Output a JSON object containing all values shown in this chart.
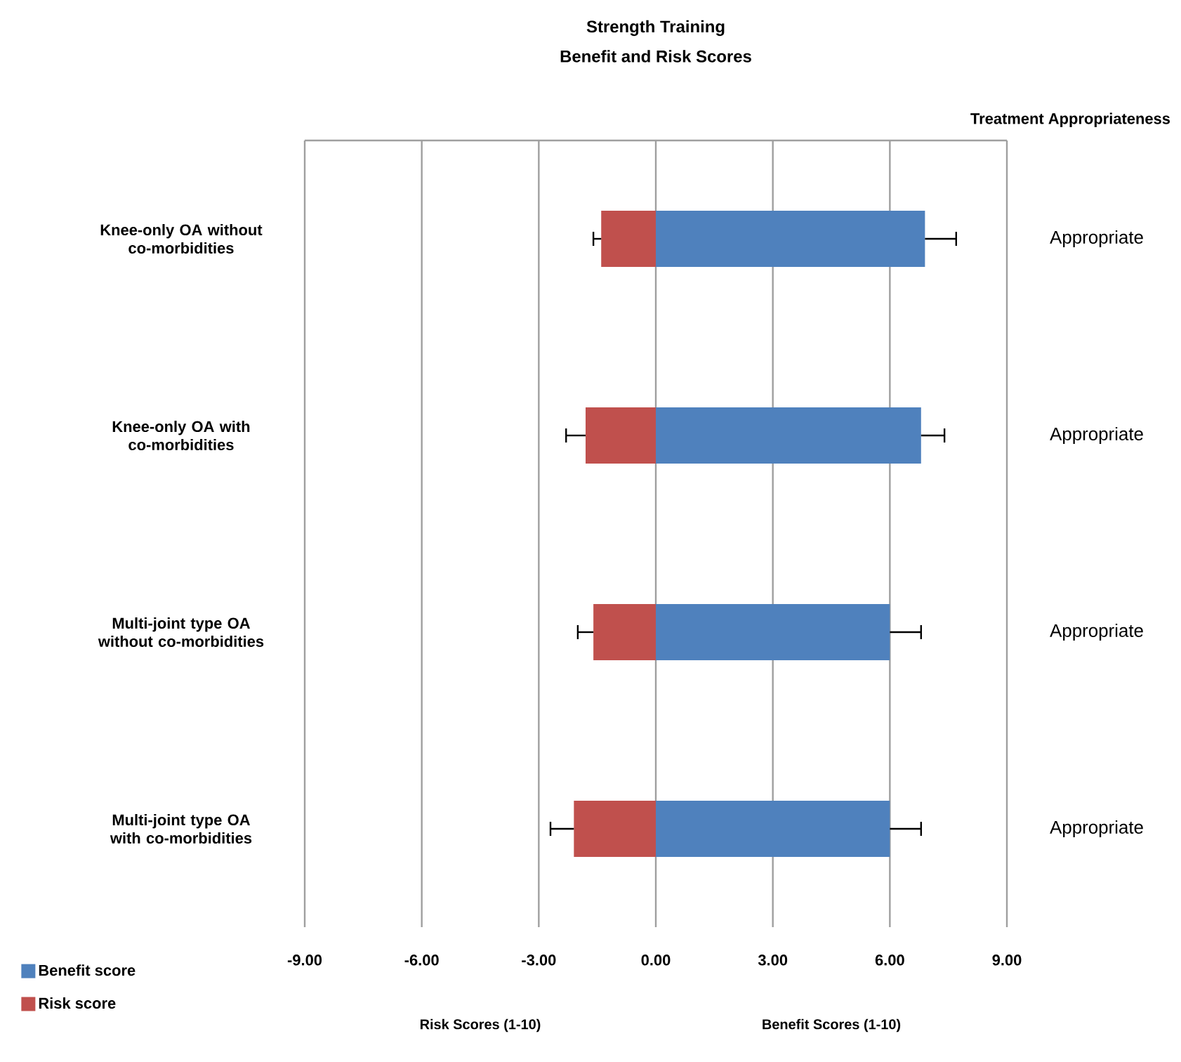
{
  "chart_data": {
    "type": "bar",
    "orientation": "horizontal",
    "stacked": true,
    "title": "Strength Training",
    "subtitle": "Benefit and Risk Scores",
    "categories": [
      "Knee-only OA without co-morbidities",
      "Knee-only OA with co-morbidities",
      "Multi-joint type OA without co-morbidities",
      "Multi-joint type OA with co-morbidities"
    ],
    "series": [
      {
        "name": "Benefit score",
        "color": "#4f81bd",
        "values": [
          6.9,
          6.8,
          6.0,
          6.0
        ],
        "errors": [
          [
            6.9,
            7.7
          ],
          [
            6.8,
            7.4
          ],
          [
            6.0,
            6.8
          ],
          [
            6.0,
            6.8
          ]
        ]
      },
      {
        "name": "Risk score",
        "color": "#c0504d",
        "values": [
          -1.4,
          -1.8,
          -1.6,
          -2.1
        ],
        "errors": [
          [
            -1.6,
            -1.4
          ],
          [
            -2.3,
            -1.8
          ],
          [
            -2.0,
            -1.6
          ],
          [
            -2.7,
            -2.1
          ]
        ]
      }
    ],
    "xlim": [
      -9,
      9
    ],
    "xticks": [
      {
        "value": -9,
        "label": "-9.00"
      },
      {
        "value": -6,
        "label": "-6.00"
      },
      {
        "value": -3,
        "label": "-3.00"
      },
      {
        "value": 0,
        "label": "0.00"
      },
      {
        "value": 3,
        "label": "3.00"
      },
      {
        "value": 6,
        "label": "6.00"
      },
      {
        "value": 9,
        "label": "9.00"
      }
    ],
    "grid": "x",
    "legend": "bottom left",
    "annotations": [
      "Treatment Appropriateness",
      "Appropriate",
      "Appropriate",
      "Appropriate",
      "Appropriate",
      "Risk Scores (1-10)",
      "Benefit Scores (1-10)"
    ]
  }
}
